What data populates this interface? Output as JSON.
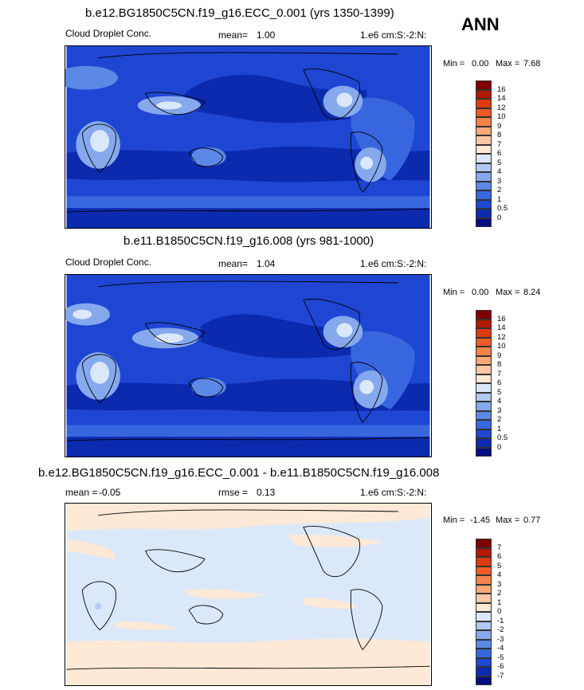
{
  "season": "ANN",
  "panels": [
    {
      "title": "b.e12.BG1850C5CN.f19_g16.ECC_0.001 (yrs 1350-1399)",
      "variable": "Cloud Droplet Conc.",
      "stat_label": "mean=",
      "stat_value": "1.00",
      "units": "1.e6 cm:S:-2:N:",
      "min_label": "Min =",
      "min_value": "0.00",
      "max_label": "Max =",
      "max_value": "7.68",
      "colorbar": {
        "labels": [
          "16",
          "14",
          "12",
          "10",
          "9",
          "8",
          "7",
          "6",
          "5",
          "4",
          "3",
          "2",
          "1",
          "0.5",
          "0"
        ],
        "colors": [
          "#7f0000",
          "#b31800",
          "#dd3a10",
          "#ef5a28",
          "#f7814a",
          "#fba878",
          "#fcc8a4",
          "#fde9d6",
          "#dbe8f9",
          "#b0c8f2",
          "#86a8ec",
          "#5c88e6",
          "#3866de",
          "#1e46d2",
          "#0c2aae",
          "#030f7e"
        ]
      }
    },
    {
      "title": "b.e11.B1850C5CN.f19_g16.008 (yrs 981-1000)",
      "variable": "Cloud Droplet Conc.",
      "stat_label": "mean=",
      "stat_value": "1.04",
      "units": "1.e6 cm:S:-2:N:",
      "min_label": "Min =",
      "min_value": "0.00",
      "max_label": "Max =",
      "max_value": "8.24",
      "colorbar": {
        "labels": [
          "16",
          "14",
          "12",
          "10",
          "9",
          "8",
          "7",
          "6",
          "5",
          "4",
          "3",
          "2",
          "1",
          "0.5",
          "0"
        ],
        "colors": [
          "#7f0000",
          "#b31800",
          "#dd3a10",
          "#ef5a28",
          "#f7814a",
          "#fba878",
          "#fcc8a4",
          "#fde9d6",
          "#dbe8f9",
          "#b0c8f2",
          "#86a8ec",
          "#5c88e6",
          "#3866de",
          "#1e46d2",
          "#0c2aae",
          "#030f7e"
        ]
      }
    },
    {
      "title": "b.e12.BG1850C5CN.f19_g16.ECC_0.001 - b.e11.B1850C5CN.f19_g16.008",
      "stat_label": "mean =",
      "stat_value": "-0.05",
      "rmse_label": "rmse =",
      "rmse_value": "0.13",
      "units": "1.e6 cm:S:-2:N:",
      "min_label": "Min =",
      "min_value": "-1.45",
      "max_label": "Max =",
      "max_value": "0.77",
      "colorbar": {
        "labels": [
          "7",
          "6",
          "5",
          "4",
          "3",
          "2",
          "1",
          "0",
          "-1",
          "-2",
          "-3",
          "-4",
          "-5",
          "-6",
          "-7"
        ],
        "colors": [
          "#7f0000",
          "#b31800",
          "#dd3a10",
          "#ef5a28",
          "#f7814a",
          "#fba878",
          "#fcc8a4",
          "#fde9d6",
          "#dbe8f9",
          "#b0c8f2",
          "#86a8ec",
          "#5c88e6",
          "#3866de",
          "#1e46d2",
          "#0c2aae",
          "#030f7e"
        ]
      }
    }
  ],
  "colors": {
    "ocean_low": "#0c2aae",
    "ocean_mid": "#1e46d2",
    "band": "#3866de",
    "land_high": "#86a8ec",
    "land_peak": "#dbe8f9",
    "diff_pos": "#fde9d6",
    "diff_neg": "#dbe8f9",
    "diff_neg2": "#b0c8f2",
    "coast": "#000000"
  }
}
